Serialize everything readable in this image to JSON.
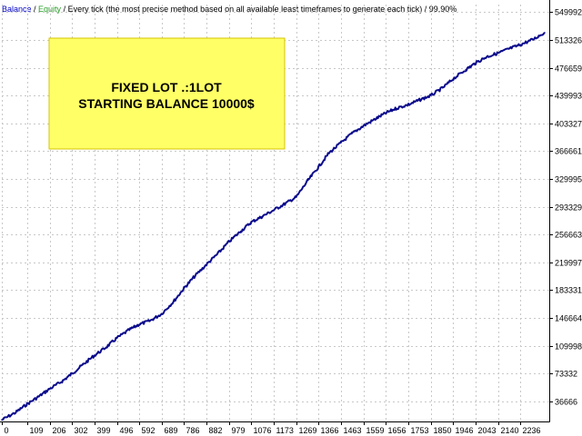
{
  "header": {
    "balance_label": "Balance",
    "separator": " / ",
    "equity_label": "Equity",
    "info": " / Every tick (the most precise method based on all available least timeframes to generate each tick)",
    "quality": " / 99.90%"
  },
  "colors": {
    "balance_line": "#0a0a8c",
    "equity_label": "#2aa02a",
    "balance_label": "#0000c8",
    "grid": "#c8c8c8",
    "annotation_fill": "#ffff66",
    "annotation_border": "#d4c500"
  },
  "annotation": {
    "line1": "FIXED LOT .:1LOT",
    "line2": "STARTING BALANCE 10000$"
  },
  "chart_data": {
    "type": "line",
    "title": "",
    "xlabel": "",
    "ylabel": "",
    "grid": true,
    "ylim": [
      10000,
      560000
    ],
    "xlim": [
      0,
      2360
    ],
    "x_ticks": [
      0,
      109,
      206,
      302,
      399,
      496,
      592,
      689,
      786,
      882,
      979,
      1076,
      1173,
      1269,
      1366,
      1463,
      1559,
      1656,
      1753,
      1850,
      1946,
      2043,
      2140,
      2236
    ],
    "y_ticks": [
      36666,
      73332,
      109998,
      146664,
      183331,
      219997,
      256663,
      293329,
      329995,
      366661,
      403327,
      439993,
      476659,
      513326,
      549992
    ],
    "series": [
      {
        "name": "Balance",
        "x": [
          0,
          60,
          109,
          160,
          206,
          260,
          302,
          350,
          399,
          450,
          496,
          550,
          592,
          640,
          689,
          740,
          786,
          830,
          882,
          930,
          979,
          1030,
          1076,
          1120,
          1173,
          1220,
          1269,
          1320,
          1366,
          1410,
          1463,
          1510,
          1559,
          1610,
          1656,
          1700,
          1753,
          1800,
          1850,
          1900,
          1946,
          2000,
          2043,
          2090,
          2140,
          2190,
          2236,
          2290,
          2340
        ],
        "y": [
          12000,
          22000,
          33000,
          43000,
          53000,
          63000,
          73000,
          85000,
          97000,
          108000,
          120000,
          131000,
          138000,
          143000,
          152000,
          168000,
          186000,
          201000,
          217000,
          231000,
          247000,
          261000,
          273000,
          280000,
          289000,
          297000,
          306000,
          328000,
          346000,
          364000,
          378000,
          390000,
          400000,
          409000,
          417000,
          423000,
          428000,
          434000,
          440000,
          450000,
          462000,
          474000,
          483000,
          491000,
          496000,
          502000,
          507000,
          514000,
          523000
        ]
      }
    ]
  }
}
